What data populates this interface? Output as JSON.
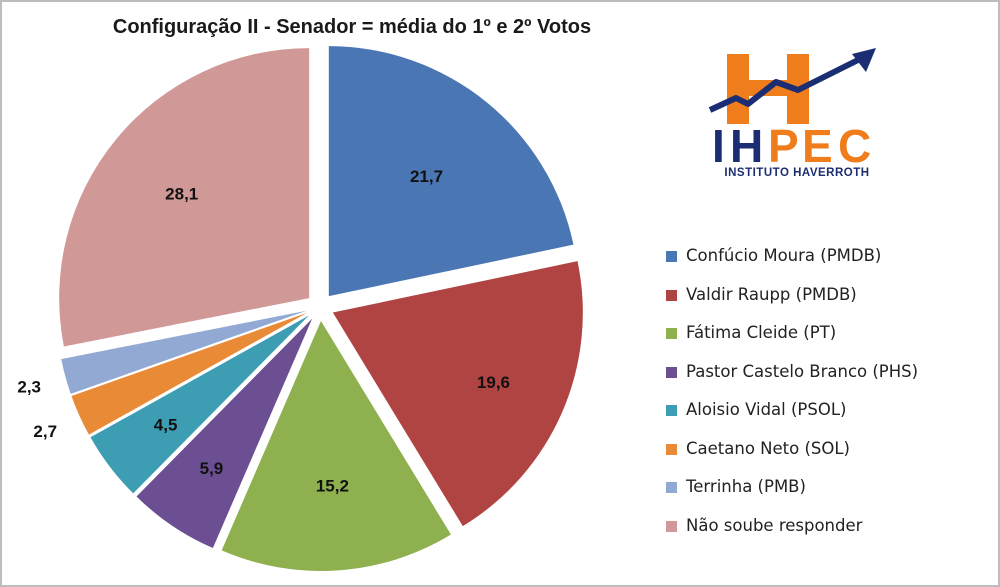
{
  "chart_data": {
    "type": "pie",
    "title": "Configuração II - Senador = média do 1º e 2º Votos",
    "categories": [
      "Confúcio Moura (PMDB)",
      "Valdir Raupp (PMDB)",
      "Fátima Cleide (PT)",
      "Pastor Castelo Branco (PHS)",
      "Aloisio Vidal (PSOL)",
      "Caetano Neto (SOL)",
      "Terrinha (PMB)",
      "Não soube responder"
    ],
    "values": [
      21.7,
      19.6,
      15.2,
      5.9,
      4.5,
      2.7,
      2.3,
      28.1
    ],
    "data_labels": [
      "21,7",
      "19,6",
      "15,2",
      "5,9",
      "4,5",
      "2,7",
      "2,3",
      "28,1"
    ],
    "colors": [
      "#4a77b4",
      "#b04443",
      "#8fb04e",
      "#6c4f93",
      "#3d9db3",
      "#e98a36",
      "#92a9d4",
      "#d09896"
    ],
    "legend_position": "right",
    "exploded": true
  },
  "logo": {
    "text": "IHPEC",
    "subtitle": "INSTITUTO HAVERROTH",
    "icon": "rising-arrow-icon",
    "colors": {
      "orange": "#f07d1b",
      "navy": "#1b2e73"
    }
  }
}
